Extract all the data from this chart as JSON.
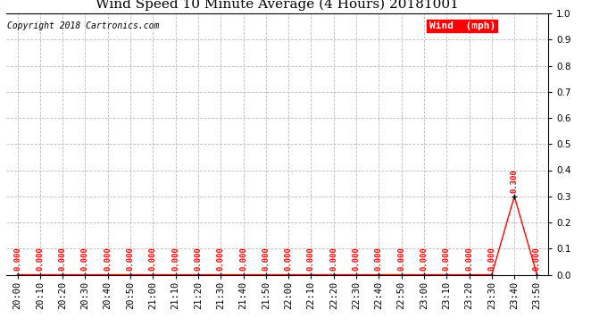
{
  "title": "Wind Speed 10 Minute Average (4 Hours) 20181001",
  "copyright_text": "Copyright 2018 Cartronics.com",
  "legend_label": "Wind  (mph)",
  "background_color": "#ffffff",
  "plot_bg_color": "#ffffff",
  "line_color": "#ff0000",
  "legend_bg_color": "#ff0000",
  "legend_text_color": "#ffffff",
  "ylim": [
    0.0,
    1.0
  ],
  "yticks": [
    0.0,
    0.1,
    0.2,
    0.3,
    0.4,
    0.5,
    0.6,
    0.7,
    0.8,
    0.9,
    1.0
  ],
  "x_labels": [
    "20:00",
    "20:10",
    "20:20",
    "20:30",
    "20:40",
    "20:50",
    "21:00",
    "21:10",
    "21:20",
    "21:30",
    "21:40",
    "21:50",
    "22:00",
    "22:10",
    "22:20",
    "22:30",
    "22:40",
    "22:50",
    "23:00",
    "23:10",
    "23:20",
    "23:30",
    "23:40",
    "23:50"
  ],
  "y_values": [
    0.0,
    0.0,
    0.0,
    0.0,
    0.0,
    0.0,
    0.0,
    0.0,
    0.0,
    0.0,
    0.0,
    0.0,
    0.0,
    0.0,
    0.0,
    0.0,
    0.0,
    0.0,
    0.0,
    0.0,
    0.0,
    0.0,
    0.3,
    0.0
  ],
  "grid_color": "#bbbbbb",
  "grid_style": "--",
  "marker": "+",
  "marker_color": "#000000",
  "marker_size": 4,
  "annotation_color": "#ff0000",
  "annotation_fontsize": 6.5,
  "title_fontsize": 11,
  "tick_fontsize": 7.5,
  "copyright_fontsize": 7,
  "legend_fontsize": 8
}
